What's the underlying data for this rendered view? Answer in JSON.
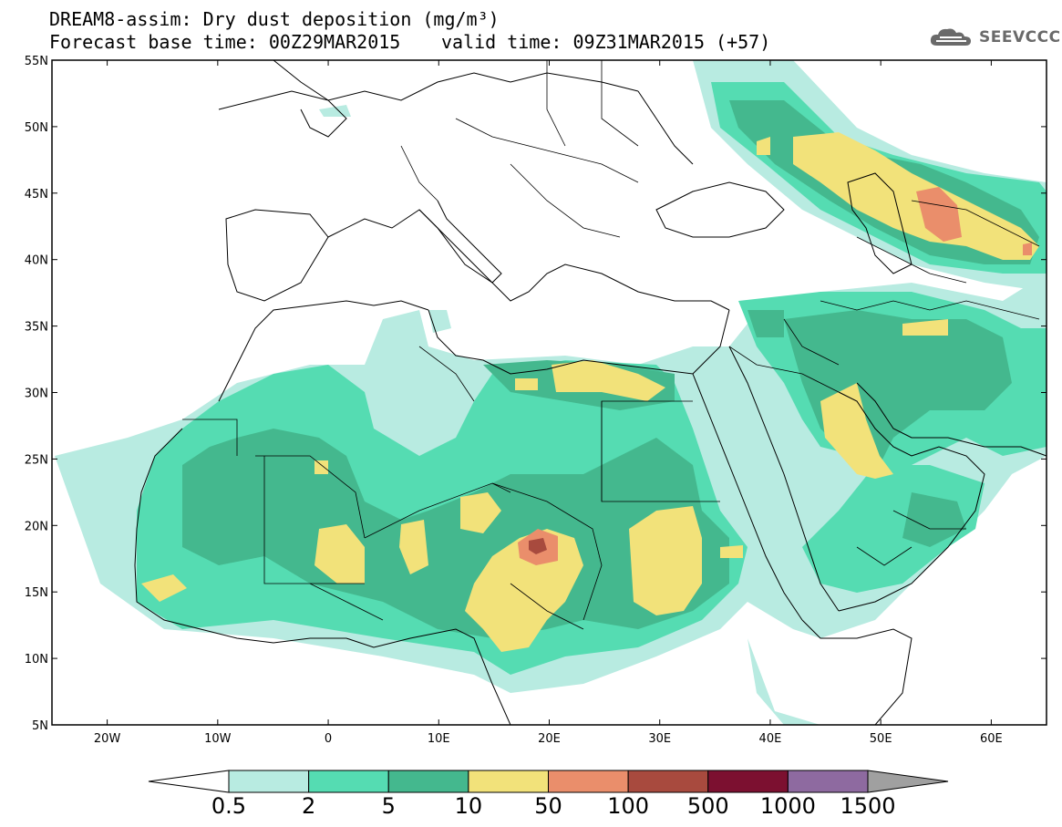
{
  "header": {
    "line1": "DREAM8-assim: Dry dust deposition (mg/m³)",
    "line2": "Forecast base time: 00Z29MAR2015",
    "line3": "valid time: 09Z31MAR2015 (+57)"
  },
  "logo": {
    "text": "SEEVCCC",
    "icon": "cloud-icon"
  },
  "axes": {
    "lat_labels": [
      "55N",
      "50N",
      "45N",
      "40N",
      "35N",
      "30N",
      "25N",
      "20N",
      "15N",
      "10N",
      "5N"
    ],
    "lon_labels": [
      "20W",
      "10W",
      "0",
      "10E",
      "20E",
      "30E",
      "40E",
      "50E",
      "60E"
    ]
  },
  "colorbar": {
    "labels": [
      "0.5",
      "2",
      "5",
      "10",
      "50",
      "100",
      "500",
      "1000",
      "1500"
    ],
    "colors": [
      "#ffffff",
      "#b8ebe1",
      "#55dcb2",
      "#44b88e",
      "#f2e27a",
      "#ea8e6b",
      "#a84a3e",
      "#7c1030",
      "#8e6aa0",
      "#a0a0a0"
    ]
  }
}
